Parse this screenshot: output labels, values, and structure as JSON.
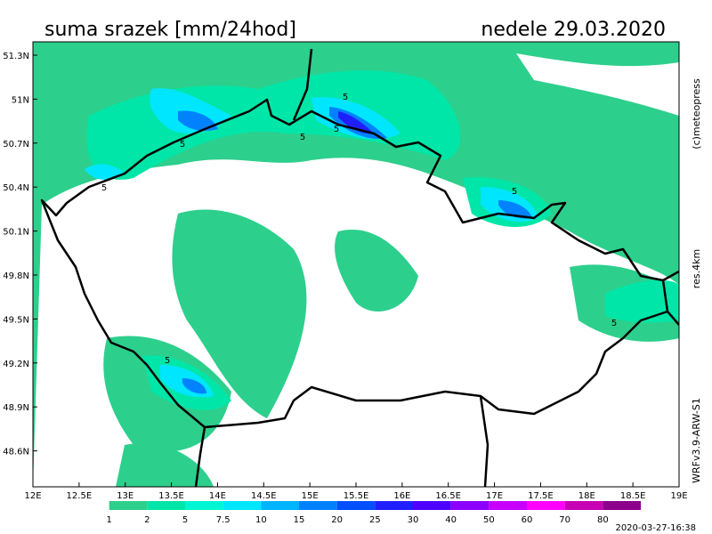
{
  "header": {
    "title": "suma srazek [mm/24hod]",
    "date": "nedele 29.03.2020"
  },
  "map": {
    "lat_labels": [
      "51.3N",
      "51N",
      "50.7N",
      "50.4N",
      "50.1N",
      "49.8N",
      "49.5N",
      "49.2N",
      "48.9N",
      "48.6N"
    ],
    "lon_labels": [
      "12E",
      "12.5E",
      "13E",
      "13.5E",
      "14E",
      "14.5E",
      "15E",
      "15.5E",
      "16E",
      "16.5E",
      "17E",
      "17.5E",
      "18E",
      "18.5E",
      "19E"
    ],
    "contour_labels": [
      5,
      5,
      5,
      5,
      5,
      5,
      5,
      5
    ]
  },
  "side_labels": {
    "copyright": "(c)meteopress",
    "resolution": "res.4km",
    "model": "WRFv3.9-ARW-S1"
  },
  "legend": {
    "levels": [
      1,
      2,
      5,
      7.5,
      10,
      15,
      20,
      25,
      30,
      40,
      50,
      60,
      70,
      80
    ],
    "colors": [
      "#ffffff",
      "#2dcf8c",
      "#00e6a8",
      "#00f5d2",
      "#00e6ff",
      "#00b4ff",
      "#0082ff",
      "#0050ff",
      "#2020ff",
      "#5000ff",
      "#8c00ff",
      "#c800ff",
      "#ff00ff",
      "#c800b4",
      "#8c008c"
    ]
  },
  "footer": {
    "timestamp": "2020-03-27-16:38"
  }
}
